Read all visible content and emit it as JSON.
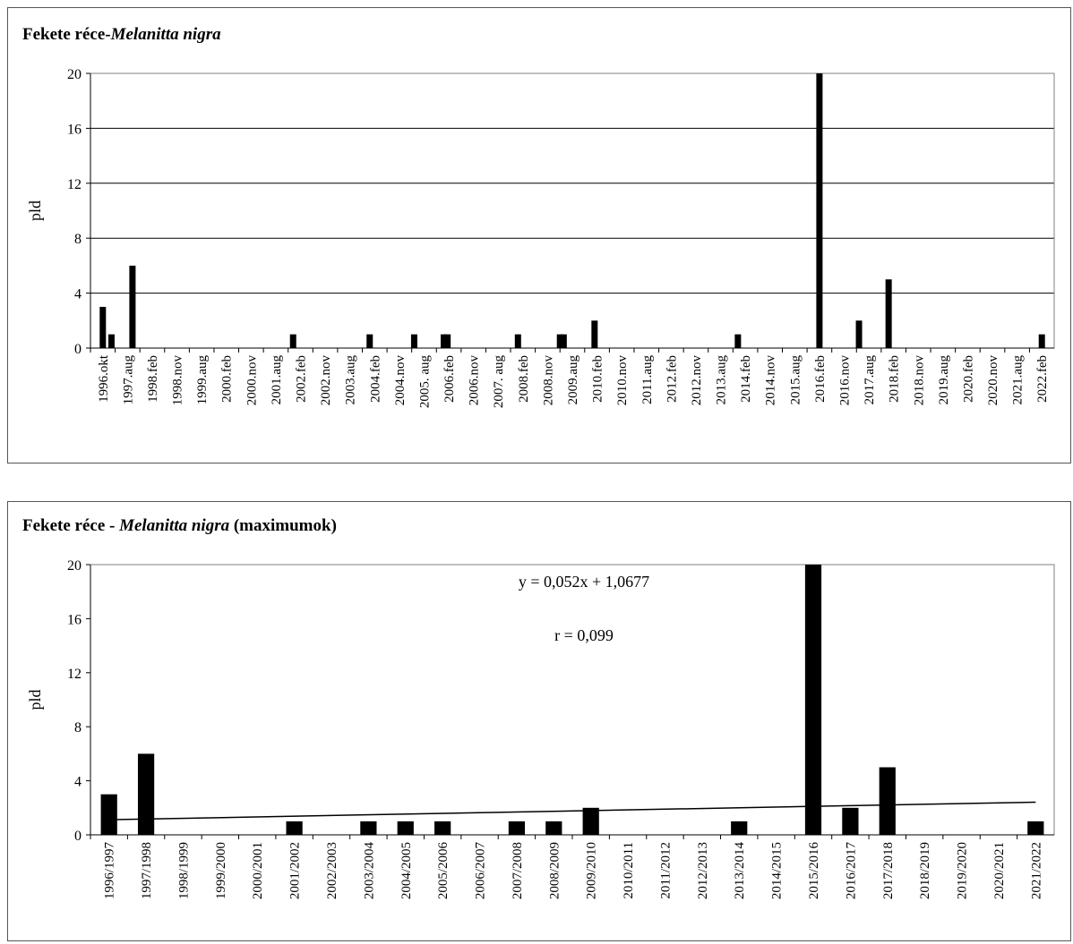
{
  "charts": [
    {
      "title_main": "Fekete réce-",
      "title_italic": "Melanitta nigra",
      "title_suffix": "",
      "ylabel": "pld",
      "ylim": [
        0,
        20
      ],
      "yticks": [
        0,
        4,
        8,
        12,
        16,
        20
      ],
      "tick_labels": [
        "1996.okt",
        "1997.aug",
        "1998.feb",
        "1998.nov",
        "1999.aug",
        "2000.feb",
        "2000.nov",
        "2001.aug",
        "2002.feb",
        "2002.nov",
        "2003.aug",
        "2004.feb",
        "2004.nov",
        "2005. aug",
        "2006.feb",
        "2006.nov",
        "2007. aug",
        "2008.feb",
        "2008.nov",
        "2009.aug",
        "2010.feb",
        "2010.nov",
        "2011.aug",
        "2012.feb",
        "2012.nov",
        "2013.aug",
        "2014.feb",
        "2014.nov",
        "2015.aug",
        "2016.feb",
        "2016.nov",
        "2017.aug",
        "2018.feb",
        "2018.nov",
        "2019.aug",
        "2020.feb",
        "2020.nov",
        "2021.aug",
        "2022.feb"
      ]
    },
    {
      "title_main": "Fekete réce - ",
      "title_italic": "Melanitta nigra",
      "title_suffix": " (maximumok)",
      "ylabel": "pld",
      "ylim": [
        0,
        20
      ],
      "yticks": [
        0,
        4,
        8,
        12,
        16,
        20
      ],
      "equation": "y = 0,052x  + 1,0677",
      "r_text": "r = 0,099"
    }
  ],
  "chart_data": [
    {
      "type": "bar",
      "title": "Fekete réce-Melanitta nigra",
      "ylabel": "pld",
      "ylim": [
        0,
        20
      ],
      "grid": true,
      "bars": [
        {
          "index": 0,
          "value": 3
        },
        {
          "index": 0.35,
          "value": 1
        },
        {
          "index": 1.2,
          "value": 6
        },
        {
          "index": 7.7,
          "value": 1
        },
        {
          "index": 10.8,
          "value": 1
        },
        {
          "index": 12.6,
          "value": 1
        },
        {
          "index": 13.8,
          "value": 1
        },
        {
          "index": 13.95,
          "value": 1
        },
        {
          "index": 16.8,
          "value": 1
        },
        {
          "index": 18.5,
          "value": 1
        },
        {
          "index": 18.65,
          "value": 1
        },
        {
          "index": 19.9,
          "value": 2
        },
        {
          "index": 25.7,
          "value": 1
        },
        {
          "index": 29.0,
          "value": 20
        },
        {
          "index": 30.6,
          "value": 2
        },
        {
          "index": 31.8,
          "value": 5
        },
        {
          "index": 38.0,
          "value": 1
        }
      ]
    },
    {
      "type": "bar",
      "title": "Fekete réce - Melanitta nigra (maximumok)",
      "ylabel": "pld",
      "ylim": [
        0,
        20
      ],
      "grid": false,
      "categories": [
        "1996/1997",
        "1997/1998",
        "1998/1999",
        "1999/2000",
        "2000/2001",
        "2001/2002",
        "2002/2003",
        "2003/2004",
        "2004/2005",
        "2005/2006",
        "2006/2007",
        "2007/2008",
        "2008/2009",
        "2009/2010",
        "2010/2011",
        "2011/2012",
        "2012/2013",
        "2013/2014",
        "2014/2015",
        "2015/2016",
        "2016/2017",
        "2017/2018",
        "2018/2019",
        "2019/2020",
        "2020/2021",
        "2021/2022"
      ],
      "values": [
        3,
        6,
        0,
        0,
        0,
        1,
        0,
        1,
        1,
        1,
        0,
        1,
        1,
        2,
        0,
        0,
        0,
        1,
        0,
        20,
        2,
        5,
        0,
        0,
        0,
        1
      ],
      "trendline": {
        "slope": 0.052,
        "intercept": 1.0677
      },
      "annotations": [
        "y = 0,052x  + 1,0677",
        "r = 0,099"
      ]
    }
  ]
}
